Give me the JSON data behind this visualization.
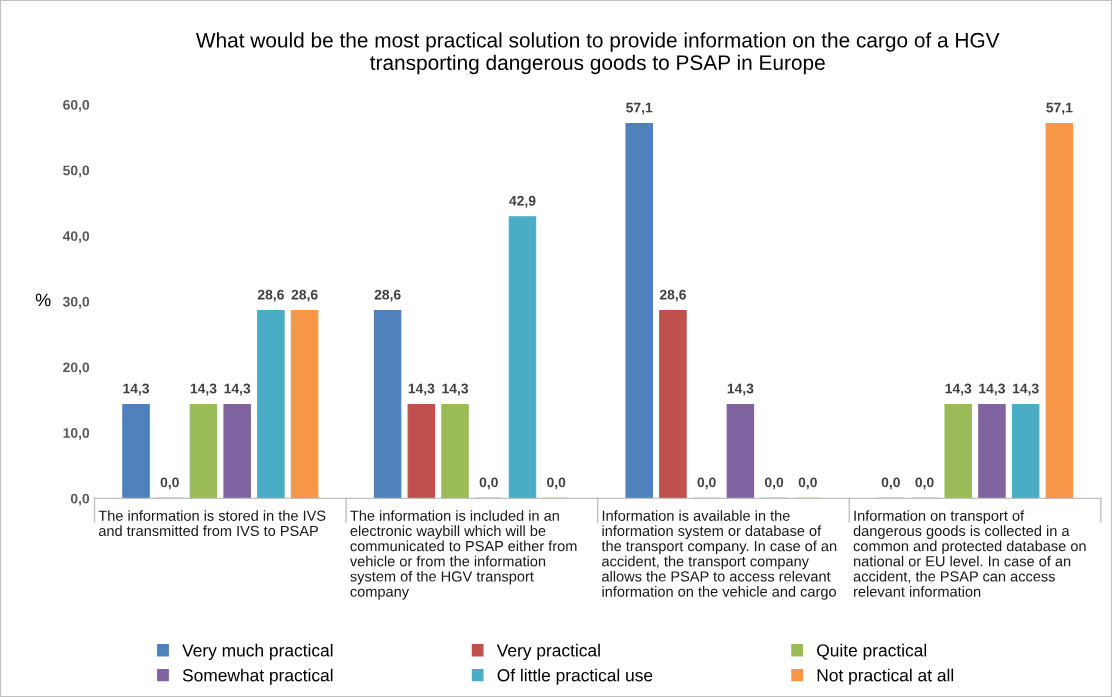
{
  "chart_data": {
    "type": "bar",
    "title": "What would be the most practical solution to provide information on the cargo of a HGV\ntransporting dangerous goods to PSAP in Europe",
    "ylabel": "%",
    "categories": [
      "The information is stored in the IVS\nand transmitted from IVS to PSAP",
      "The information is included in an\nelectronic waybill which will be\ncommunicated to PSAP either from\nvehicle or from the information\nsystem of the HGV transport\ncompany",
      "Information is available in the\ninformation system or database of\nthe transport company. In case of an\naccident, the transport company\nallows the PSAP to access relevant\ninformation on the vehicle and cargo",
      "Information on transport of\ndangerous goods is collected in a\ncommon and protected database on\nnational or EU level. In case of an\naccident, the PSAP can access\nrelevant information"
    ],
    "series": [
      {
        "name": "Very much practical",
        "color": "#4f81bd",
        "values": [
          14.3,
          28.6,
          57.1,
          0.0
        ],
        "value_labels": [
          "14,3",
          "28,6",
          "57,1",
          "0,0"
        ]
      },
      {
        "name": "Very practical",
        "color": "#c0504d",
        "values": [
          0.0,
          14.3,
          28.6,
          0.0
        ],
        "value_labels": [
          "0,0",
          "14,3",
          "28,6",
          "0,0"
        ]
      },
      {
        "name": "Quite practical",
        "color": "#9bbb59",
        "values": [
          14.3,
          14.3,
          0.0,
          14.3
        ],
        "value_labels": [
          "14,3",
          "14,3",
          "0,0",
          "14,3"
        ]
      },
      {
        "name": "Somewhat practical",
        "color": "#8064a2",
        "values": [
          14.3,
          0.0,
          14.3,
          14.3
        ],
        "value_labels": [
          "14,3",
          "0,0",
          "14,3",
          "14,3"
        ]
      },
      {
        "name": "Of little practical use",
        "color": "#4bacc6",
        "values": [
          28.6,
          42.9,
          0.0,
          14.3
        ],
        "value_labels": [
          "28,6",
          "42,9",
          "0,0",
          "14,3"
        ]
      },
      {
        "name": "Not practical at all",
        "color": "#f79646",
        "values": [
          28.6,
          0.0,
          0.0,
          57.1
        ],
        "value_labels": [
          "28,6",
          "0,0",
          "0,0",
          "57,1"
        ]
      }
    ],
    "ylim": [
      0,
      60
    ],
    "yticks": [
      {
        "value": 0,
        "label": "0,0"
      },
      {
        "value": 10,
        "label": "10,0"
      },
      {
        "value": 20,
        "label": "20,0"
      },
      {
        "value": 30,
        "label": "30,0"
      },
      {
        "value": 40,
        "label": "40,0"
      },
      {
        "value": 50,
        "label": "50,0"
      },
      {
        "value": 60,
        "label": "60,0"
      }
    ],
    "grid": false,
    "legend": "bottom"
  }
}
